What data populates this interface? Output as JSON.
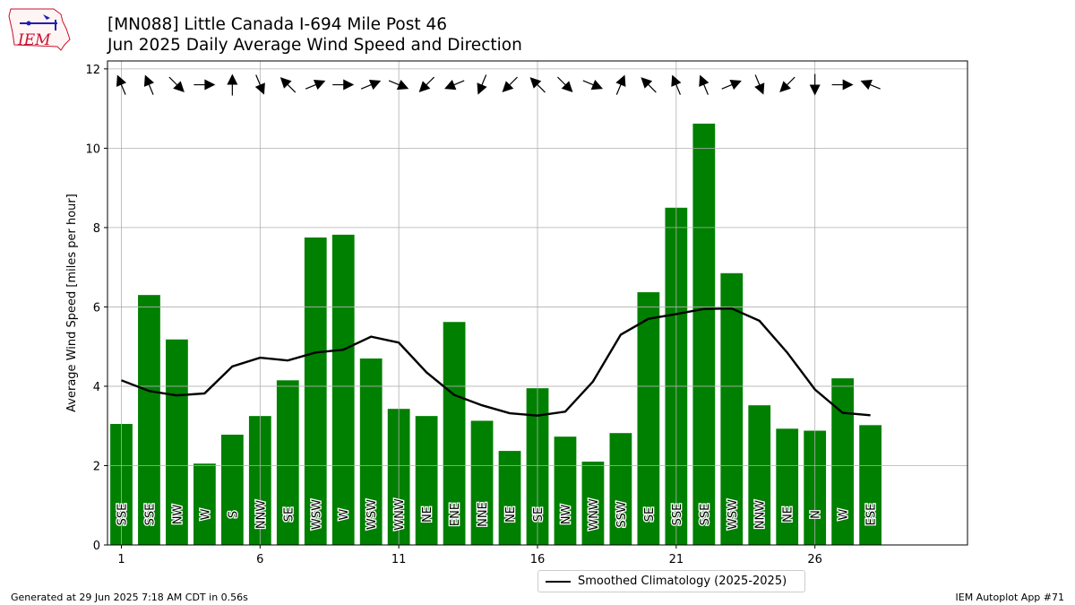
{
  "header": {
    "title_line1": "[MN088] Little Canada I-694 Mile Post 46",
    "title_line2": "Jun 2025 Daily Average Wind Speed and Direction"
  },
  "logo": {
    "text": "IEM"
  },
  "footer": {
    "generated": "Generated at 29 Jun 2025 7:18 AM CDT in 0.56s",
    "app": "IEM Autoplot App #71"
  },
  "legend": {
    "label": "Smoothed Climatology (2025-2025)"
  },
  "colors": {
    "bar": "#008000",
    "climo": "#000000",
    "grid": "#b0b0b0",
    "logo_red": "#c8102e",
    "logo_blue": "#1f1fb4"
  },
  "chart_data": {
    "type": "bar",
    "ylabel": "Average Wind Speed [miles per hour]",
    "xlim": [
      0.5,
      31.5
    ],
    "ylim": [
      0,
      12.2
    ],
    "xticks": [
      1,
      6,
      11,
      16,
      21,
      26
    ],
    "yticks": [
      0,
      2,
      4,
      6,
      8,
      10,
      12
    ],
    "grid": true,
    "legend_position": "bottom-center",
    "days": [
      1,
      2,
      3,
      4,
      5,
      6,
      7,
      8,
      9,
      10,
      11,
      12,
      13,
      14,
      15,
      16,
      17,
      18,
      19,
      20,
      21,
      22,
      23,
      24,
      25,
      26,
      27,
      28
    ],
    "speeds": [
      3.05,
      6.3,
      5.18,
      2.05,
      2.78,
      3.25,
      4.15,
      7.75,
      7.82,
      4.7,
      3.43,
      3.25,
      5.62,
      3.13,
      2.37,
      3.95,
      2.73,
      2.1,
      2.82,
      6.37,
      8.5,
      10.62,
      6.85,
      3.52,
      2.93,
      2.88,
      4.2,
      3.02
    ],
    "directions": [
      "SSE",
      "SSE",
      "NW",
      "W",
      "S",
      "NNW",
      "SE",
      "WSW",
      "W",
      "WSW",
      "WNW",
      "NE",
      "ENE",
      "NNE",
      "NE",
      "SE",
      "NW",
      "WNW",
      "SSW",
      "SE",
      "SSE",
      "SSE",
      "WSW",
      "NNW",
      "NE",
      "N",
      "W",
      "ESE"
    ],
    "arrow_degrees": [
      157.5,
      157.5,
      315,
      270,
      180,
      337.5,
      135,
      247.5,
      270,
      247.5,
      292.5,
      45,
      67.5,
      22.5,
      45,
      135,
      315,
      292.5,
      202.5,
      135,
      157.5,
      157.5,
      247.5,
      337.5,
      45,
      0,
      270,
      112.5
    ],
    "climatology": {
      "name": "Smoothed Climatology (2025-2025)",
      "values": [
        4.15,
        3.88,
        3.77,
        3.82,
        4.5,
        4.72,
        4.65,
        4.85,
        4.92,
        5.25,
        5.1,
        4.35,
        3.78,
        3.52,
        3.32,
        3.26,
        3.36,
        4.12,
        5.3,
        5.7,
        5.82,
        5.95,
        5.96,
        5.65,
        4.85,
        3.92,
        3.33,
        3.27
      ]
    }
  }
}
